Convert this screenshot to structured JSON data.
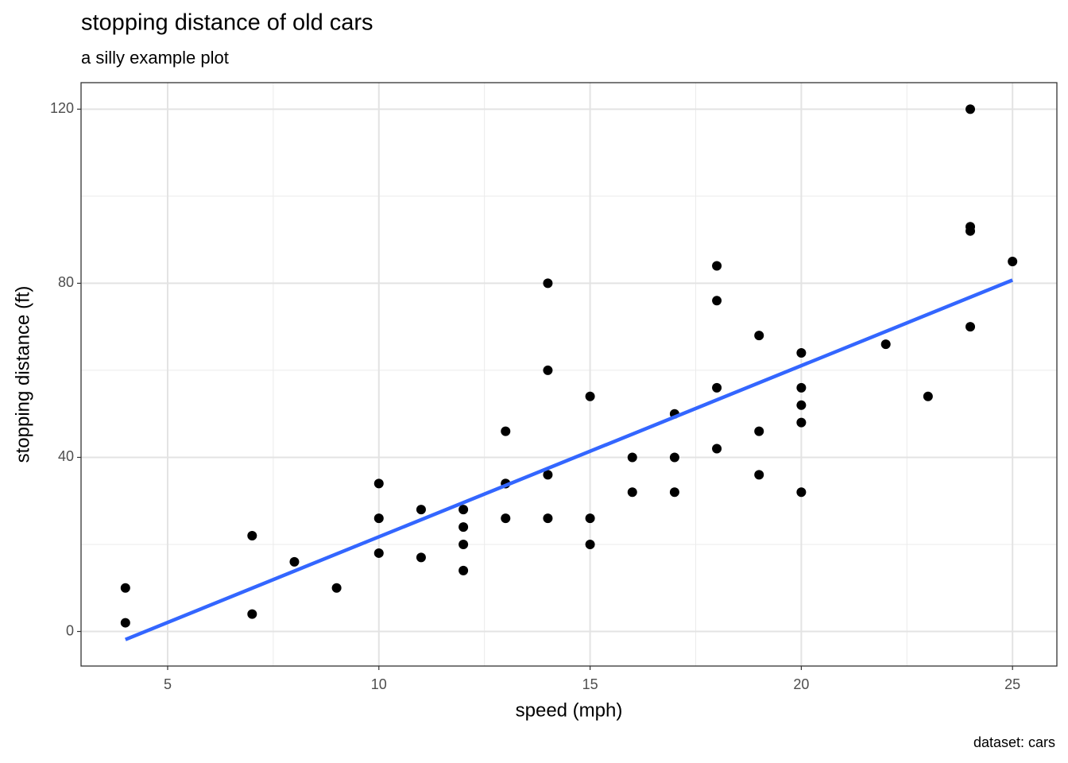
{
  "chart_data": {
    "type": "scatter",
    "title": "stopping distance of old cars",
    "subtitle": "a silly example plot",
    "x_label": "speed (mph)",
    "y_label": "stopping distance (ft)",
    "caption": "dataset: cars",
    "xlim": [
      2.95,
      26.05
    ],
    "ylim": [
      -7.94,
      126.09
    ],
    "xticks": [
      5,
      10,
      15,
      20,
      25
    ],
    "yticks": [
      0,
      40,
      80,
      120
    ],
    "x_minor_gridlines": [
      7.5,
      12.5,
      17.5,
      22.5
    ],
    "y_minor_gridlines": [
      20,
      60,
      100
    ],
    "grid": true,
    "series": [
      {
        "type": "scatter",
        "color": "#000000",
        "x": [
          4,
          4,
          7,
          7,
          8,
          9,
          10,
          10,
          10,
          11,
          11,
          12,
          12,
          12,
          12,
          13,
          13,
          13,
          13,
          14,
          14,
          14,
          14,
          15,
          15,
          15,
          16,
          16,
          17,
          17,
          17,
          18,
          18,
          18,
          18,
          19,
          19,
          19,
          20,
          20,
          20,
          20,
          20,
          22,
          23,
          24,
          24,
          24,
          24,
          25
        ],
        "values": [
          2,
          10,
          4,
          22,
          16,
          10,
          18,
          26,
          34,
          17,
          28,
          14,
          20,
          24,
          28,
          26,
          34,
          34,
          46,
          26,
          36,
          60,
          80,
          20,
          26,
          54,
          32,
          40,
          32,
          40,
          50,
          42,
          56,
          76,
          84,
          36,
          46,
          68,
          32,
          48,
          52,
          56,
          64,
          66,
          54,
          70,
          92,
          93,
          120,
          85
        ]
      },
      {
        "type": "line",
        "color": "#3366FF",
        "x": [
          4,
          25
        ],
        "values": [
          -1.85,
          80.73
        ]
      }
    ]
  }
}
